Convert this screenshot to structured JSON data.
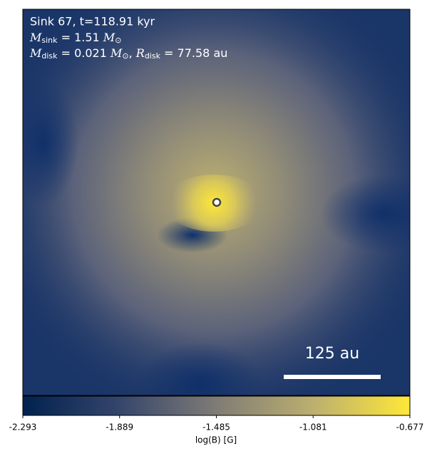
{
  "annotation": {
    "line1": "Sink 67, t=118.91 kyr",
    "line2": {
      "symbol": "M",
      "subscript": "sink",
      "value": " = 1.51 ",
      "unit": "M",
      "unit_subscript": "⊙"
    },
    "line3": {
      "symbol": "M",
      "subscript": "disk",
      "value": " = 0.021 ",
      "unit": "M",
      "unit_subscript": "⊙",
      "separator": ", ",
      "symbol2": "R",
      "subscript2": "disk",
      "value2": " = 77.58 au"
    }
  },
  "scale_bar": {
    "label": "125 au"
  },
  "colorbar": {
    "label": "log(B) [G]",
    "range": [
      -2.293,
      -0.677
    ],
    "ticks": [
      -2.293,
      -1.889,
      -1.485,
      -1.081,
      -0.677
    ]
  }
}
